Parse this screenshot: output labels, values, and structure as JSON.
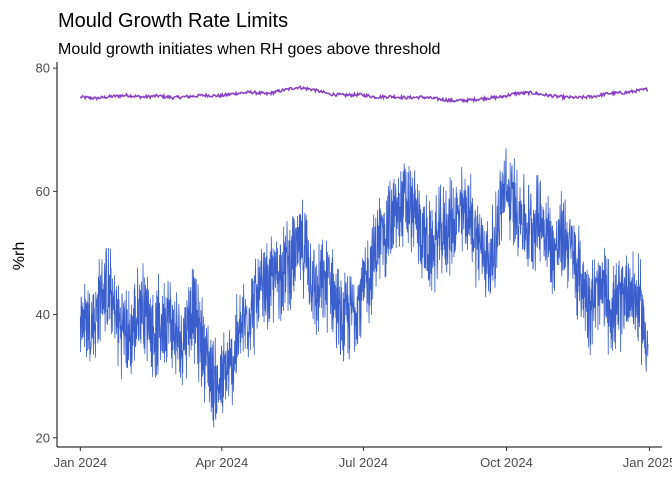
{
  "chart_data": {
    "type": "line",
    "title": "Mould Growth Rate Limits",
    "subtitle": "Mould growth initiates when RH goes above threshold",
    "xlabel": "",
    "ylabel": "%rh",
    "x_type": "date",
    "xlim": [
      "2023-12-17",
      "2025-01-09"
    ],
    "ylim": [
      18.5,
      81
    ],
    "y_ticks": [
      20,
      40,
      60,
      80
    ],
    "y_tick_labels": [
      "20",
      "40",
      "60",
      "80"
    ],
    "x_ticks": [
      "2024-01-01",
      "2024-04-01",
      "2024-07-01",
      "2024-10-01",
      "2025-01-01"
    ],
    "x_tick_labels": [
      "Jan 2024",
      "Apr 2024",
      "Jul 2024",
      "Oct 2024",
      "Jan 2025"
    ],
    "grid": false,
    "legend": "none",
    "series": [
      {
        "color": "#8a3fc4",
        "x": [
          "2024-01-01",
          "2024-01-11",
          "2024-01-21",
          "2024-01-31",
          "2024-02-10",
          "2024-02-20",
          "2024-03-01",
          "2024-03-11",
          "2024-03-21",
          "2024-03-31",
          "2024-04-10",
          "2024-04-20",
          "2024-04-30",
          "2024-05-10",
          "2024-05-20",
          "2024-05-30",
          "2024-06-09",
          "2024-06-19",
          "2024-06-29",
          "2024-07-09",
          "2024-07-19",
          "2024-07-29",
          "2024-08-08",
          "2024-08-18",
          "2024-08-28",
          "2024-09-07",
          "2024-09-17",
          "2024-09-27",
          "2024-10-07",
          "2024-10-17",
          "2024-10-27",
          "2024-11-06",
          "2024-11-16",
          "2024-11-26",
          "2024-12-06",
          "2024-12-16",
          "2024-12-31"
        ],
        "values": [
          75.3,
          75.1,
          75.4,
          75.6,
          75.3,
          75.5,
          75.2,
          75.4,
          75.6,
          75.5,
          75.9,
          76.1,
          75.8,
          76.4,
          76.9,
          76.5,
          75.8,
          75.6,
          75.7,
          75.3,
          75.4,
          75.2,
          75.3,
          75.0,
          74.7,
          74.8,
          75.1,
          75.3,
          75.9,
          76.0,
          75.6,
          75.3,
          75.2,
          75.4,
          75.9,
          76.0,
          76.6
        ]
      },
      {
        "color": "#3a5fcd",
        "x": [
          "2024-01-01",
          "2024-01-09",
          "2024-01-17",
          "2024-01-25",
          "2024-02-02",
          "2024-02-10",
          "2024-02-18",
          "2024-02-26",
          "2024-03-05",
          "2024-03-13",
          "2024-03-21",
          "2024-03-29",
          "2024-04-06",
          "2024-04-14",
          "2024-04-22",
          "2024-04-30",
          "2024-05-08",
          "2024-05-16",
          "2024-05-24",
          "2024-06-01",
          "2024-06-09",
          "2024-06-17",
          "2024-06-25",
          "2024-07-03",
          "2024-07-11",
          "2024-07-19",
          "2024-07-27",
          "2024-08-04",
          "2024-08-12",
          "2024-08-20",
          "2024-08-28",
          "2024-09-05",
          "2024-09-13",
          "2024-09-21",
          "2024-09-29",
          "2024-10-07",
          "2024-10-15",
          "2024-10-23",
          "2024-10-31",
          "2024-11-08",
          "2024-11-16",
          "2024-11-24",
          "2024-12-02",
          "2024-12-10",
          "2024-12-18",
          "2024-12-26",
          "2024-12-31"
        ],
        "values": [
          40,
          38,
          45,
          39,
          36,
          42,
          37,
          40,
          35,
          41,
          34,
          28,
          31,
          38,
          42,
          44,
          47,
          49,
          51,
          43,
          46,
          38,
          41,
          45,
          52,
          55,
          58,
          56,
          50,
          53,
          55,
          57,
          52,
          48,
          60,
          58,
          54,
          56,
          50,
          53,
          47,
          42,
          44,
          40,
          45,
          41,
          35
        ]
      }
    ]
  }
}
